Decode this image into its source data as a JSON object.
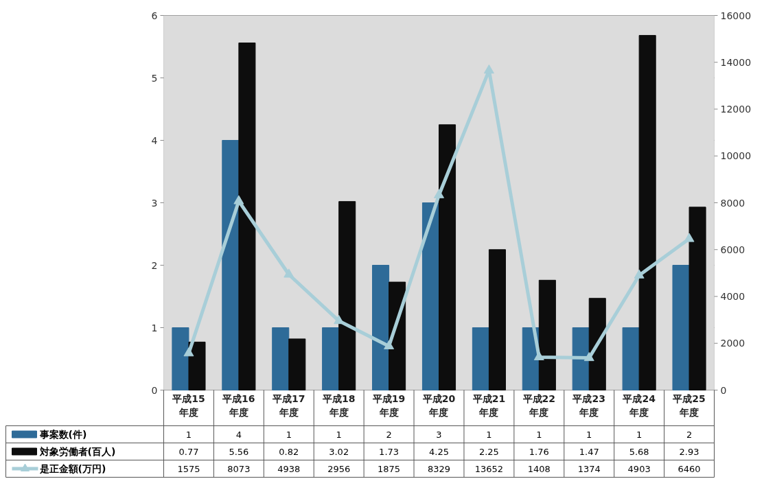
{
  "chart_data": {
    "type": "bar",
    "categories": [
      "平成15\n年度",
      "平成16\n年度",
      "平成17\n年度",
      "平成18\n年度",
      "平成19\n年度",
      "平成20\n年度",
      "平成21\n年度",
      "平成22\n年度",
      "平成23\n年度",
      "平成24\n年度",
      "平成25\n年度"
    ],
    "series": [
      {
        "name": "事案数(件)",
        "color": "#2e6b98",
        "values": [
          1,
          4,
          1,
          1,
          2,
          3,
          1,
          1,
          1,
          1,
          2
        ]
      },
      {
        "name": "対象労働者(百人)",
        "color": "#0d0d0d",
        "values": [
          0.77,
          5.56,
          0.82,
          3.02,
          1.73,
          4.25,
          2.25,
          1.76,
          1.47,
          5.68,
          2.93
        ]
      },
      {
        "name": "是正金額(万円)",
        "color": "#a8ced8",
        "type": "line",
        "axis": "y2",
        "marker": "triangle",
        "values": [
          1575,
          8073,
          4938,
          2956,
          1875,
          8329,
          13652,
          1408,
          1374,
          4903,
          6460
        ]
      }
    ],
    "ylim": [
      0,
      6
    ],
    "yticks": [
      0,
      1,
      2,
      3,
      4,
      5,
      6
    ],
    "y2lim": [
      0,
      16000
    ],
    "y2ticks": [
      0,
      2000,
      4000,
      6000,
      8000,
      10000,
      12000,
      14000,
      16000
    ],
    "grid": "y",
    "legend": "bottom",
    "data_labels": true
  }
}
